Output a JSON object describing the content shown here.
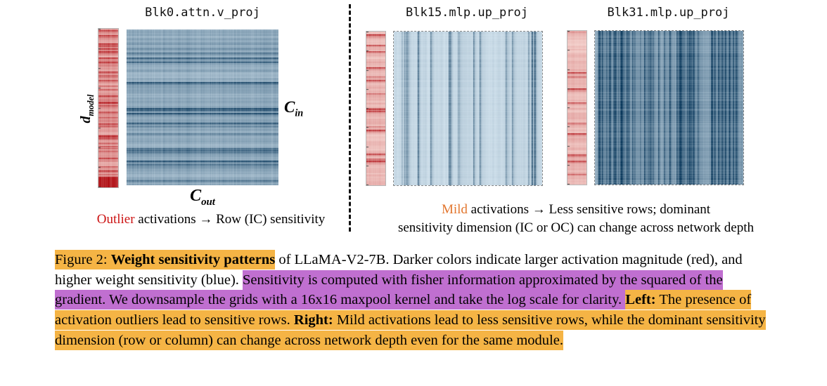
{
  "colors": {
    "orange": "#F5B445",
    "purple": "#C06FD0",
    "outlier_red": "#CC1414",
    "mild_orange": "#E2762E",
    "blue_light": "#E2F0F9",
    "blue_dark": "#053458",
    "red_light": "#FDEDE7",
    "red_dark": "#B00E14"
  },
  "figure": {
    "panels": [
      {
        "title": "Blk0.attn.v_proj",
        "strip": {
          "seed": 11,
          "base": 0.14,
          "noise": 0.4,
          "spike_prob": 0.13,
          "spike_base": 0.6,
          "bottom_block": true,
          "palette": "red",
          "orientation": "h",
          "ticks": true
        },
        "heatmap": {
          "seed": 21,
          "base": 0.2,
          "noise": 0.34,
          "spike_prob": 0.09,
          "spike_base": 0.6,
          "bottom_block": false,
          "palette": "blue",
          "orientation": "h",
          "ticks": false
        }
      },
      {
        "title": "Blk15.mlp.up_proj",
        "strip": {
          "seed": 12,
          "base": 0.1,
          "noise": 0.26,
          "spike_prob": 0.05,
          "spike_base": 0.48,
          "bottom_block": false,
          "palette": "red",
          "orientation": "h",
          "ticks": true
        },
        "heatmap": {
          "seed": 22,
          "base": 0.07,
          "noise": 0.11,
          "spike_prob": 0.07,
          "spike_base": 0.3,
          "bottom_block": false,
          "palette": "blue",
          "orientation": "v",
          "ticks": false
        }
      },
      {
        "title": "Blk31.mlp.up_proj",
        "strip": {
          "seed": 13,
          "base": 0.1,
          "noise": 0.26,
          "spike_prob": 0.05,
          "spike_base": 0.48,
          "bottom_block": false,
          "palette": "red",
          "orientation": "h",
          "ticks": true
        },
        "heatmap": {
          "seed": 23,
          "base": 0.3,
          "noise": 0.26,
          "spike_prob": 0.24,
          "spike_base": 0.62,
          "bottom_block": false,
          "palette": "blue",
          "orientation": "v",
          "ticks": false
        }
      }
    ],
    "labels": {
      "d_main": "d",
      "d_sub": "model",
      "cin_main": "C",
      "cin_sub": "in",
      "cout_main": "C",
      "cout_sub": "out"
    },
    "left_subcaption": {
      "segments": [
        {
          "text": "Outlier",
          "color": "outlier_red"
        },
        {
          "text": " activations "
        },
        {
          "text": "→",
          "arrow": true
        },
        {
          "text": " Row (IC) sensitivity"
        }
      ]
    },
    "right_subcaption": {
      "segments": [
        {
          "text": "Mild",
          "color": "mild_orange"
        },
        {
          "text": " activations "
        },
        {
          "text": "→",
          "arrow": true
        },
        {
          "text": " Less sensitive rows; dominant"
        },
        {
          "text": "sensitivity dimension (IC or OC) can change across network depth",
          "break_before": true
        }
      ]
    }
  },
  "caption": {
    "segments": [
      {
        "text": "Figure 2: ",
        "highlight": "orange"
      },
      {
        "text": "Weight sensitivity patterns",
        "bold": true,
        "highlight": "orange"
      },
      {
        "text": " of LLaMA-V2-7B. Darker colors indicate larger activation magnitude (red), and higher weight sensitivity (blue). "
      },
      {
        "text": "Sensitivity is computed with fisher information approximated by the squared of the gradient. ",
        "highlight": "purple"
      },
      {
        "text": "We downsample the grids with a 16x16 maxpool kernel and take the log scale for clarity. ",
        "highlight": "purple"
      },
      {
        "text": "Left:",
        "bold": true,
        "highlight": "orange"
      },
      {
        "text": " The presence of activation outliers lead to sensitive rows. ",
        "highlight": "orange"
      },
      {
        "text": "Right:",
        "bold": true,
        "highlight": "orange"
      },
      {
        "text": " Mild activations lead to less sensitive rows, while the dominant sensitivity dimension (row or column) can change across network depth even for the same module.",
        "highlight": "orange"
      }
    ]
  }
}
